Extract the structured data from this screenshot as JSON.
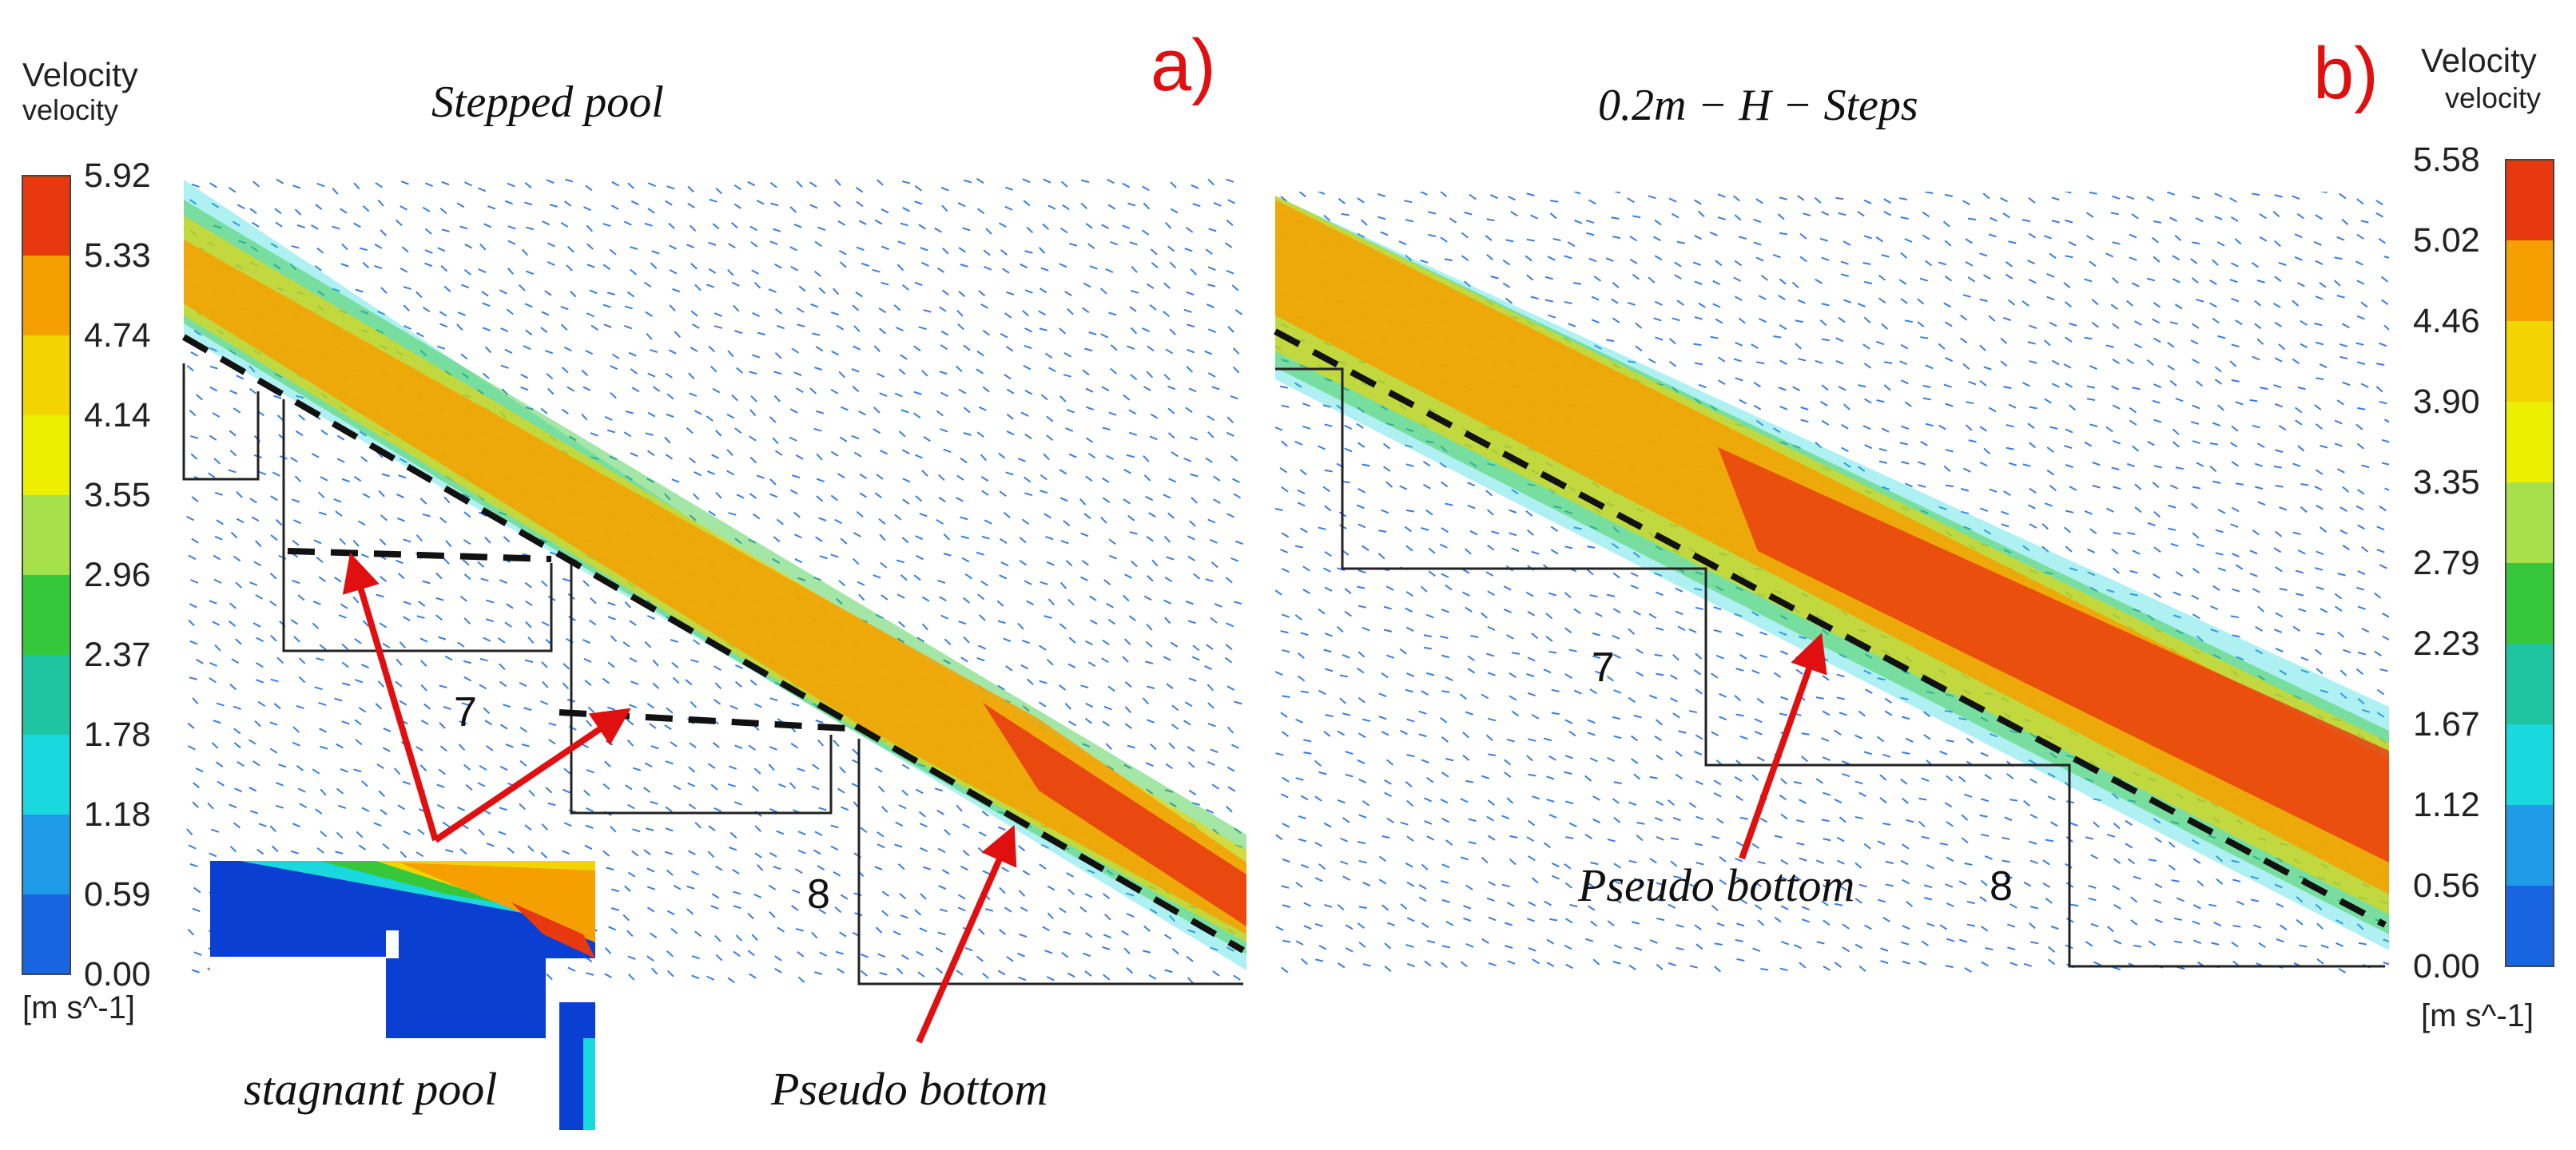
{
  "panels": [
    {
      "id": "a",
      "letter": "a)",
      "title": "Stepped pool",
      "legend": {
        "title": "Velocity",
        "subtitle": "velocity",
        "ticks": [
          "5.92",
          "5.33",
          "4.74",
          "4.14",
          "3.55",
          "2.96",
          "2.37",
          "1.78",
          "1.18",
          "0.59",
          "0.00"
        ],
        "unit": "[m s^-1]"
      },
      "step_labels": [
        "7",
        "8"
      ],
      "annotations": [
        "stagnant pool",
        "Pseudo bottom"
      ]
    },
    {
      "id": "b",
      "letter": "b)",
      "title": "0.2m − H − Steps",
      "legend": {
        "title": "Velocity",
        "subtitle": "velocity",
        "ticks": [
          "5.58",
          "5.02",
          "4.46",
          "3.90",
          "3.35",
          "2.79",
          "2.23",
          "1.67",
          "1.12",
          "0.56",
          "0.00"
        ],
        "unit": "[m s^-1]"
      },
      "step_labels": [
        "7",
        "8"
      ],
      "annotations": [
        "Pseudo bottom"
      ]
    }
  ],
  "colormap": [
    "#e8380f",
    "#f5a000",
    "#f2d500",
    "#ecf000",
    "#a6e04a",
    "#36c83a",
    "#1ec5a0",
    "#19d8de",
    "#1e9be6",
    "#1964e0",
    "#0a3fd2"
  ],
  "colors": {
    "annotation_arrow": "#e01010",
    "panel_letter": "#e01010",
    "arrow_field": "#3a7de0"
  }
}
